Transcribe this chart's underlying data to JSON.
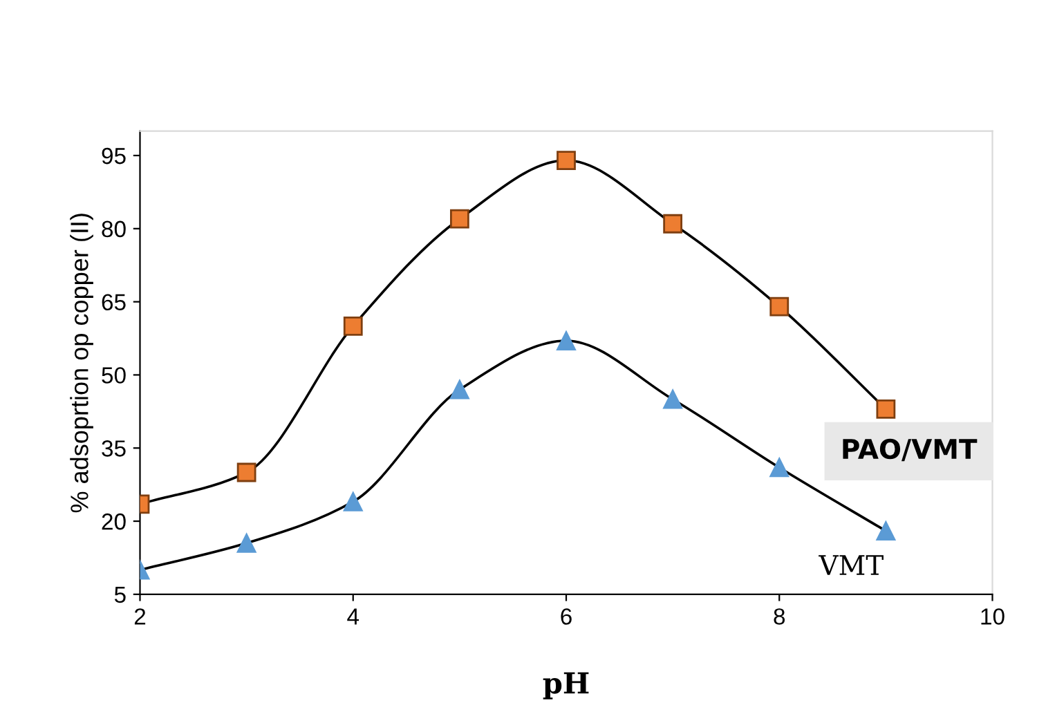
{
  "chart_data": {
    "type": "line",
    "xlabel": "pH",
    "ylabel": "% adsoprtion op copper (II)",
    "x": [
      2,
      3,
      4,
      5,
      6,
      7,
      8,
      9
    ],
    "series": [
      {
        "name": "PAO/VMT",
        "color": "#ed7d31",
        "marker": "square",
        "values": [
          23.5,
          30,
          60,
          82,
          94,
          81,
          64,
          43
        ]
      },
      {
        "name": "VMT",
        "color": "#5b9bd5",
        "marker": "triangle",
        "values": [
          10,
          15.5,
          24,
          47,
          57,
          45,
          31,
          18
        ]
      }
    ],
    "xlim": [
      2,
      10
    ],
    "ylim": [
      5,
      100
    ],
    "xticks": [
      2,
      4,
      6,
      8,
      10
    ],
    "yticks": [
      5,
      20,
      35,
      50,
      65,
      80,
      95
    ],
    "grid": false,
    "legend": false,
    "line_style": "solid"
  }
}
